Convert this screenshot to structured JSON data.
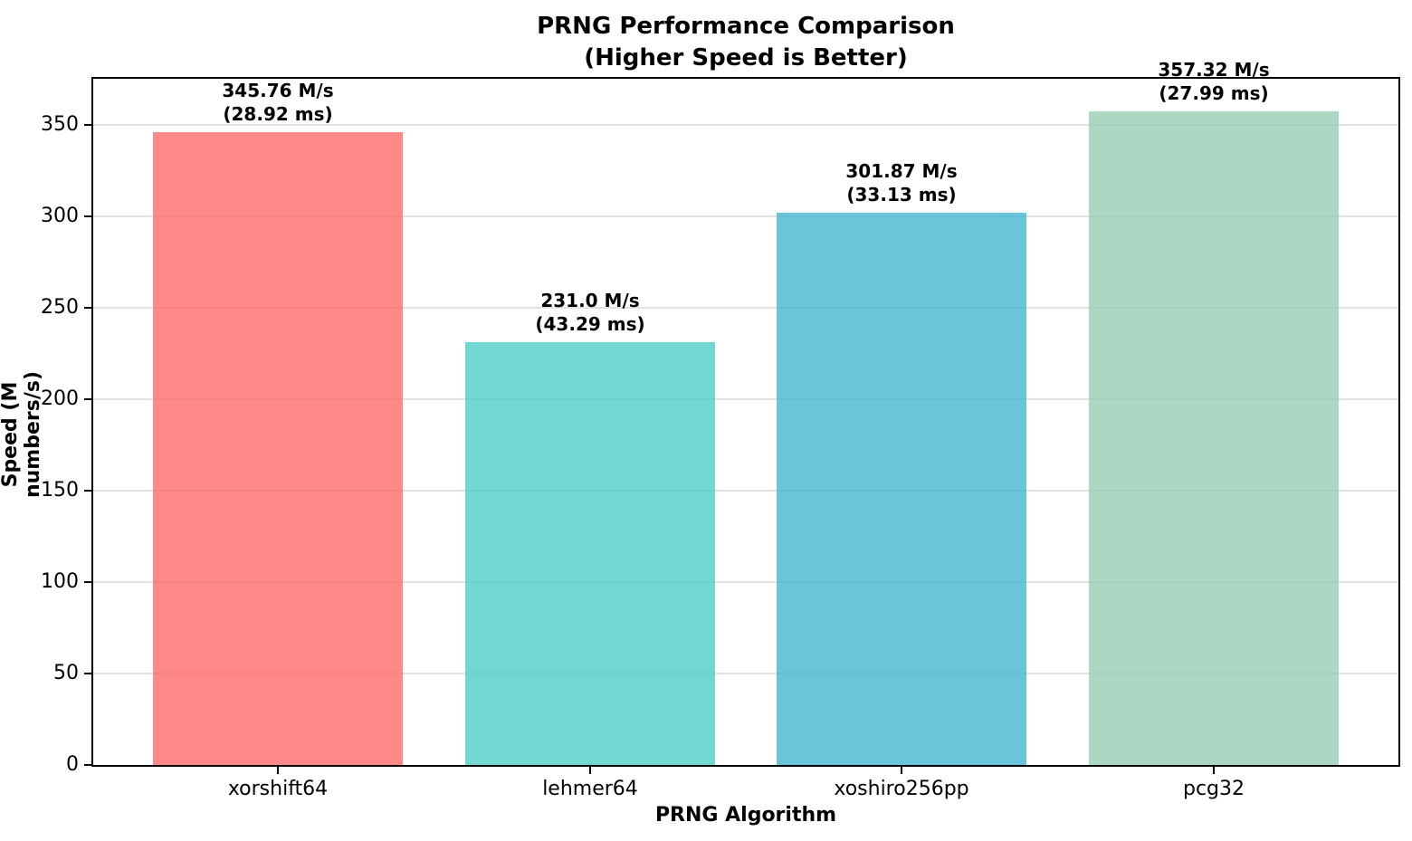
{
  "chart_data": {
    "type": "bar",
    "title_line1": "PRNG Performance Comparison",
    "title_line2": "(Higher Speed is Better)",
    "xlabel": "PRNG Algorithm",
    "ylabel": "Speed (M numbers/s)",
    "categories": [
      "xorshift64",
      "lehmer64",
      "xoshiro256pp",
      "pcg32"
    ],
    "values": [
      345.76,
      231.0,
      301.87,
      357.32
    ],
    "bar_labels": [
      {
        "line1": "345.76 M/s",
        "line2": "(28.92 ms)"
      },
      {
        "line1": "231.0 M/s",
        "line2": "(43.29 ms)"
      },
      {
        "line1": "301.87 M/s",
        "line2": "(33.13 ms)"
      },
      {
        "line1": "357.32 M/s",
        "line2": "(27.99 ms)"
      }
    ],
    "bar_colors": [
      "#FF6B6B",
      "#4ECDC4",
      "#45B7D1",
      "#96CEB4"
    ],
    "bar_alpha": 0.8,
    "yticks": [
      0,
      50,
      100,
      150,
      200,
      250,
      300,
      350
    ],
    "ylim": [
      0,
      375.19
    ],
    "grid": "horizontal",
    "gridline_color": "#e2e2e2",
    "legend": "none",
    "text_color": "#000000",
    "background_color": "#ffffff"
  }
}
